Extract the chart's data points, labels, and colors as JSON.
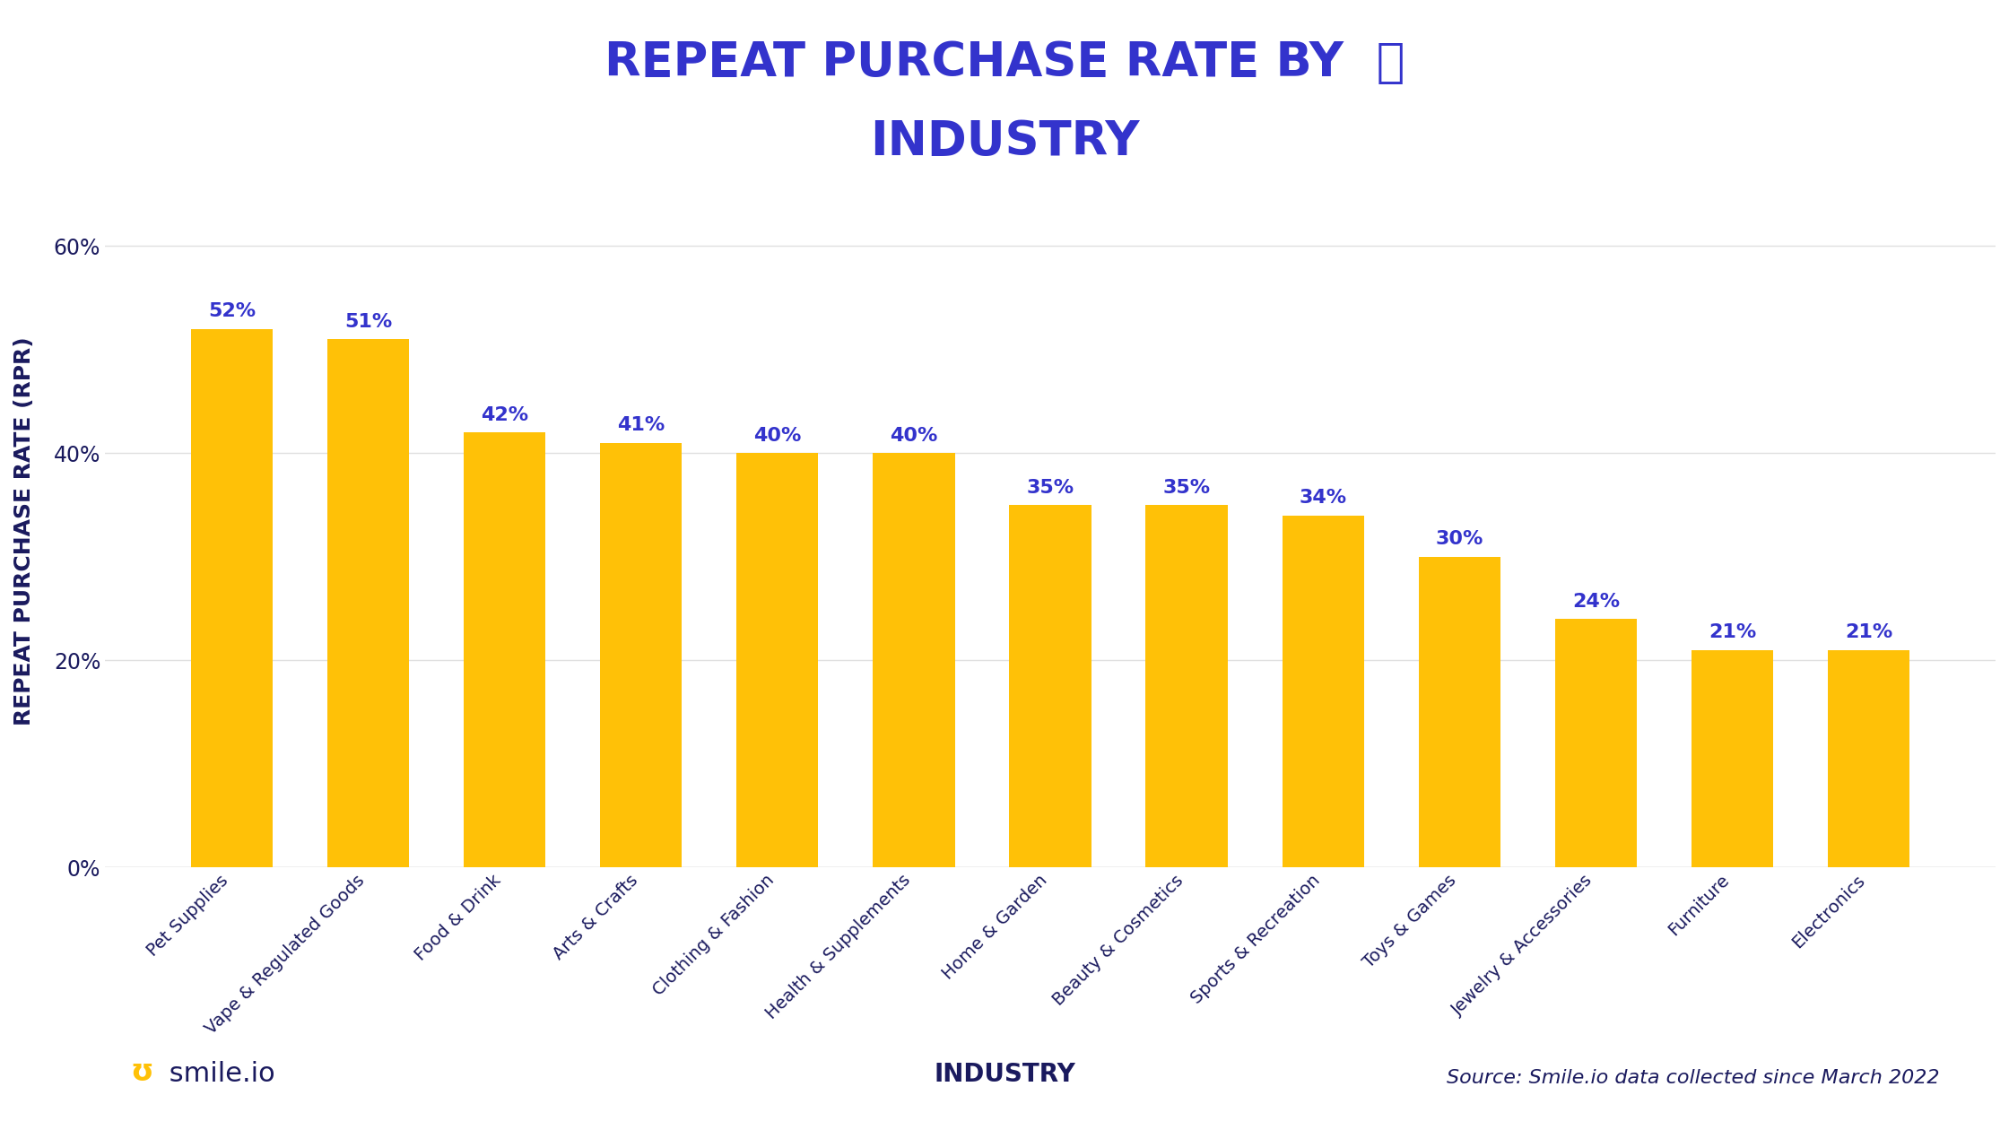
{
  "categories": [
    "Pet Supplies",
    "Vape & Regulated Goods",
    "Food & Drink",
    "Arts & Crafts",
    "Clothing & Fashion",
    "Health & Supplements",
    "Home & Garden",
    "Beauty & Cosmetics",
    "Sports & Recreation",
    "Toys & Games",
    "Jewelry & Accessories",
    "Furniture",
    "Electronics"
  ],
  "values": [
    52,
    51,
    42,
    41,
    40,
    40,
    35,
    35,
    34,
    30,
    24,
    21,
    21
  ],
  "bar_color": "#FFC107",
  "label_color": "#3333CC",
  "title_line1": "REPEAT PURCHASE RATE BY",
  "title_line2": "INDUSTRY",
  "title_color": "#3333CC",
  "ylabel": "REPEAT PURCHASE RATE (RPR)",
  "ylabel_color": "#1a1a5e",
  "xlabel": "INDUSTRY",
  "xlabel_color": "#1a1a5e",
  "ytick_color": "#1a1a5e",
  "xtick_color": "#1a1a5e",
  "ylim": [
    0,
    65
  ],
  "yticks": [
    0,
    20,
    40,
    60
  ],
  "ytick_labels": [
    "0%",
    "20%",
    "40%",
    "60%"
  ],
  "source_text": "Source: Smile.io data collected since March 2022",
  "source_color": "#1a1a5e",
  "bg_color": "#ffffff",
  "grid_color": "#e0e0e0",
  "bar_edge_color": "none",
  "value_fontsize": 16,
  "title_fontsize": 38,
  "ylabel_fontsize": 18,
  "xlabel_fontsize": 20,
  "ytick_fontsize": 17,
  "xtick_fontsize": 14,
  "source_fontsize": 16,
  "logo_fontsize": 22
}
